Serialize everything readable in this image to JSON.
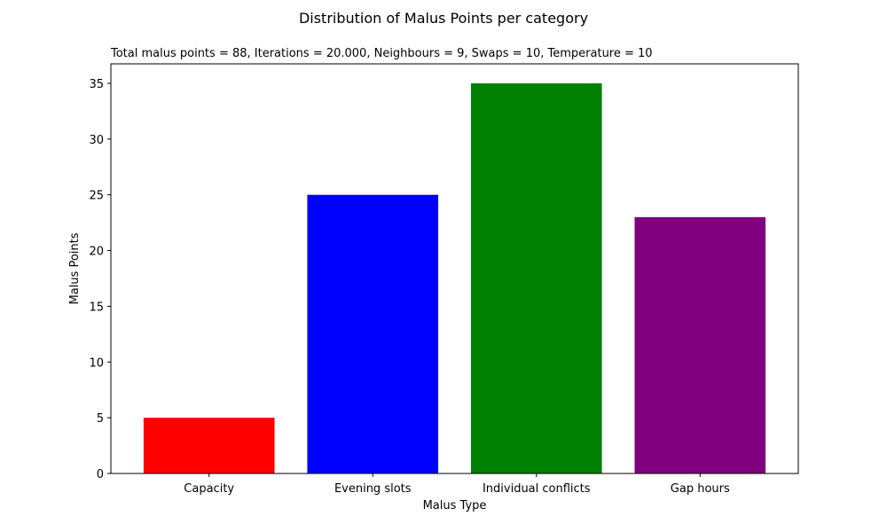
{
  "chart_data": {
    "type": "bar",
    "title": "Distribution of Malus Points per category",
    "subtitle": "Total malus points = 88, Iterations = 20.000, Neighbours = 9, Swaps = 10, Temperature = 10",
    "xlabel": "Malus Type",
    "ylabel": "Malus Points",
    "categories": [
      "Capacity",
      "Evening slots",
      "Individual conflicts",
      "Gap hours"
    ],
    "values": [
      5,
      25,
      35,
      23
    ],
    "colors": [
      "#ff0000",
      "#0000ff",
      "#008000",
      "#800080"
    ],
    "ylim": [
      0,
      36.75
    ],
    "yticks": [
      0,
      5,
      10,
      15,
      20,
      25,
      30,
      35
    ],
    "grid": false,
    "legend": "none"
  }
}
